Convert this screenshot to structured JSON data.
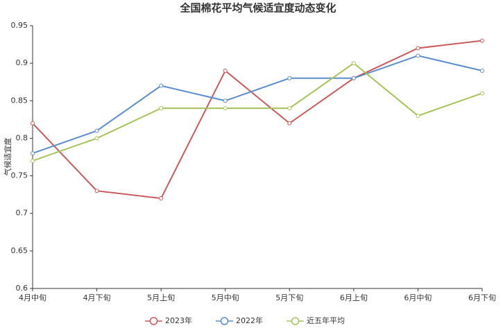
{
  "chart_data": {
    "type": "line",
    "title": "全国棉花平均气候适宜度动态变化",
    "y_label": "气候适宜度",
    "categories": [
      "4月中旬",
      "4月下旬",
      "5月上旬",
      "5月中旬",
      "5月下旬",
      "6月上旬",
      "6月中旬",
      "6月下旬"
    ],
    "series": [
      {
        "name": "2023年",
        "color": "#c9595a",
        "values": [
          0.82,
          0.73,
          0.72,
          0.89,
          0.82,
          0.88,
          0.92,
          0.93
        ]
      },
      {
        "name": "2022年",
        "color": "#5b8ccc",
        "values": [
          0.78,
          0.81,
          0.87,
          0.85,
          0.88,
          0.88,
          0.91,
          0.89
        ]
      },
      {
        "name": "近五年平均",
        "color": "#a5c35a",
        "values": [
          0.77,
          0.8,
          0.84,
          0.84,
          0.84,
          0.9,
          0.83,
          0.86
        ]
      }
    ],
    "ylim": [
      0.6,
      0.95
    ],
    "yticks": [
      0.6,
      0.65,
      0.7,
      0.75,
      0.8,
      0.85,
      0.9,
      0.95
    ],
    "grid": false
  }
}
